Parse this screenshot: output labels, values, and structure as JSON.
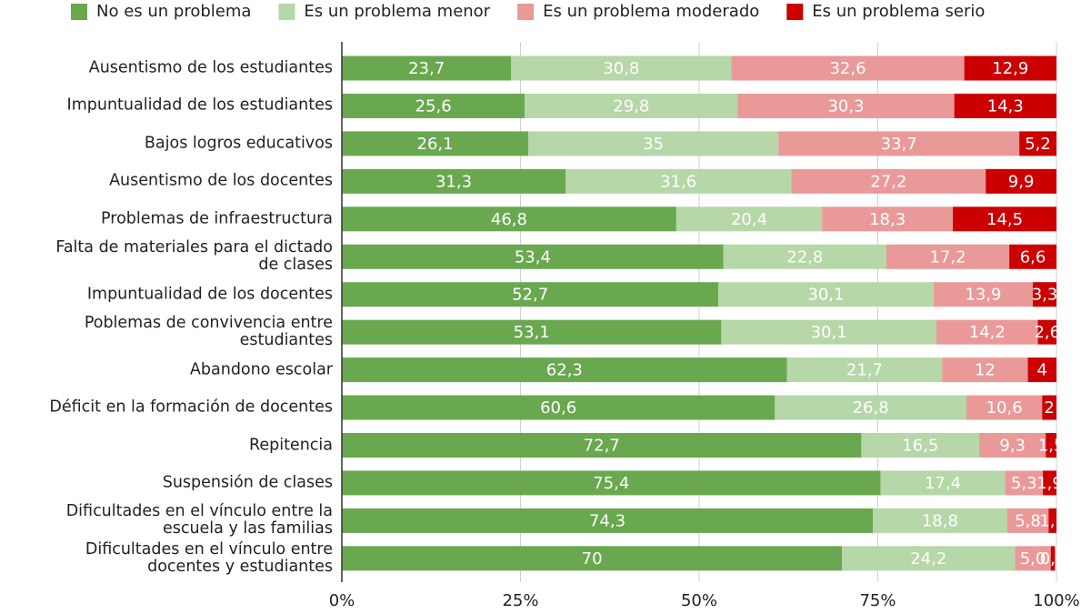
{
  "chart_data": {
    "type": "stacked-bar-horizontal",
    "categories": [
      "Ausentismo de los estudiantes",
      "Impuntualidad de los estudiantes",
      "Bajos logros educativos",
      "Ausentismo de los docentes",
      "Problemas de infraestructura",
      "Falta de materiales para el dictado\nde clases",
      "Impuntualidad de los docentes",
      "Poblemas de convivencia entre\nestudiantes",
      "Abandono escolar",
      "Déficit en la formación de docentes",
      "Repitencia",
      "Suspensión de clases",
      "Dificultades en el vínculo entre la\nescuela y las familias",
      "Dificultades en el vínculo entre\ndocentes y estudiantes"
    ],
    "series": [
      {
        "name": "No es un problema",
        "color": "#6aa84f",
        "values": [
          23.7,
          25.6,
          26.1,
          31.3,
          46.8,
          53.4,
          52.7,
          53.1,
          62.3,
          60.6,
          72.7,
          75.4,
          74.3,
          70
        ],
        "value_labels": [
          "23,7",
          "25,6",
          "26,1",
          "31,3",
          "46,8",
          "53,4",
          "52,7",
          "53,1",
          "62,3",
          "60,6",
          "72,7",
          "75,4",
          "74,3",
          "70"
        ]
      },
      {
        "name": "Es un problema menor",
        "color": "#b6d7a8",
        "values": [
          30.8,
          29.8,
          35,
          31.6,
          20.4,
          22.8,
          30.1,
          30.1,
          21.7,
          26.8,
          16.5,
          17.4,
          18.8,
          24.2
        ],
        "value_labels": [
          "30,8",
          "29,8",
          "35",
          "31,6",
          "20,4",
          "22,8",
          "30,1",
          "30,1",
          "21,7",
          "26,8",
          "16,5",
          "17,4",
          "18,8",
          "24,2"
        ]
      },
      {
        "name": "Es un problema moderado",
        "color": "#ea9999",
        "values": [
          32.6,
          30.3,
          33.7,
          27.2,
          18.3,
          17.2,
          13.9,
          14.2,
          12,
          10.6,
          9.3,
          5.3,
          5.8,
          5
        ],
        "value_labels": [
          "32,6",
          "30,3",
          "33,7",
          "27,2",
          "18,3",
          "17,2",
          "13,9",
          "14,2",
          "12",
          "10,6",
          "9,3",
          "5,3",
          "5,8",
          "5,0"
        ]
      },
      {
        "name": "Es un problema serio",
        "color": "#cc0000",
        "values": [
          12.9,
          14.3,
          5.2,
          9.9,
          14.5,
          6.6,
          3.3,
          2.6,
          4,
          2,
          1.5,
          1.9,
          1.1,
          0.6
        ],
        "value_labels": [
          "12,9",
          "14,3",
          "5,2",
          "9,9",
          "14,5",
          "6,6",
          "3,3",
          "2,6",
          "4",
          "2",
          "1,5",
          "1,9",
          "1,1",
          "0,6"
        ]
      }
    ],
    "xlim": [
      0,
      100
    ],
    "xticks": [
      {
        "value": 0,
        "label": "0%"
      },
      {
        "value": 25,
        "label": "25%"
      },
      {
        "value": 50,
        "label": "50%"
      },
      {
        "value": 75,
        "label": "75%"
      },
      {
        "value": 100,
        "label": "100%"
      }
    ],
    "grid": true,
    "legend_position": "top"
  }
}
